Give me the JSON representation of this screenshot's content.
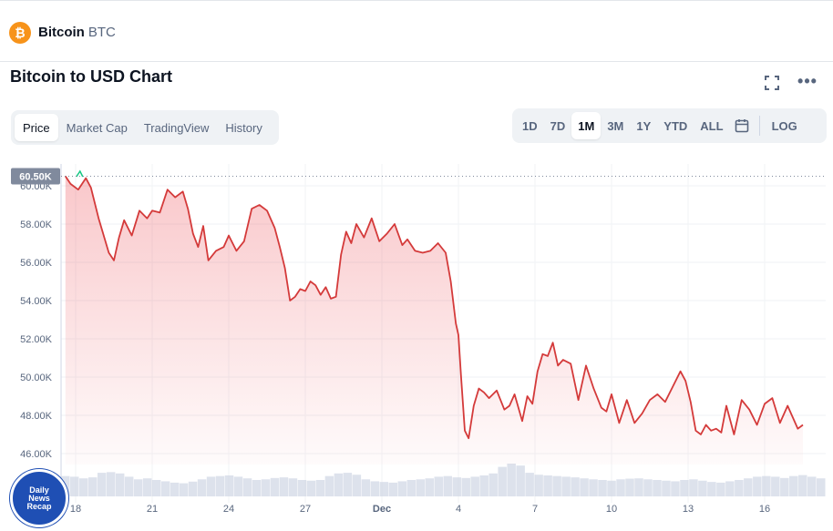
{
  "header": {
    "coin_logo": "₿",
    "coin_name": "Bitcoin",
    "coin_symbol": "BTC"
  },
  "chart_title": "Bitcoin to USD Chart",
  "icons": {
    "fullscreen": "fullscreen-icon",
    "more": "more-icon",
    "calendar": "calendar-icon"
  },
  "more_glyph": "•••",
  "view_tabs": [
    {
      "label": "Price",
      "active": true
    },
    {
      "label": "Market Cap",
      "active": false
    },
    {
      "label": "TradingView",
      "active": false
    },
    {
      "label": "History",
      "active": false
    }
  ],
  "range_tabs": [
    {
      "label": "1D",
      "active": false
    },
    {
      "label": "7D",
      "active": false
    },
    {
      "label": "1M",
      "active": true
    },
    {
      "label": "3M",
      "active": false
    },
    {
      "label": "1Y",
      "active": false
    },
    {
      "label": "YTD",
      "active": false
    },
    {
      "label": "ALL",
      "active": false
    }
  ],
  "log_label": "LOG",
  "news_badge": [
    "Daily",
    "News",
    "Recap"
  ],
  "colors": {
    "line": "#d43a3a",
    "fill": "#ea3943",
    "badge": "#808a9d",
    "volume": "#cfd6e4",
    "up_tick": "#16c784"
  },
  "chart_data": {
    "type": "line",
    "title": "Bitcoin to USD Chart",
    "current_price_label": "60.50K",
    "y_ticks": [
      "60.00K",
      "58.00K",
      "56.00K",
      "54.00K",
      "52.00K",
      "50.00K",
      "48.00K",
      "46.00K"
    ],
    "ylim": [
      46000,
      61000
    ],
    "x_ticks": [
      {
        "label": "18",
        "day": 0
      },
      {
        "label": "21",
        "day": 3
      },
      {
        "label": "24",
        "day": 6
      },
      {
        "label": "27",
        "day": 9
      },
      {
        "label": "Dec",
        "day": 12
      },
      {
        "label": "4",
        "day": 15
      },
      {
        "label": "7",
        "day": 18
      },
      {
        "label": "10",
        "day": 21
      },
      {
        "label": "13",
        "day": 24
      },
      {
        "label": "16",
        "day": 27
      }
    ],
    "xlim": [
      -0.4,
      28.5
    ],
    "grid": true,
    "series": [
      {
        "x": [
          -0.4,
          -0.2,
          0.1,
          0.4,
          0.6,
          0.9,
          1.1,
          1.3,
          1.5,
          1.7,
          1.9,
          2.2,
          2.5,
          2.8,
          3.0,
          3.3,
          3.6,
          3.9,
          4.2,
          4.4,
          4.6,
          4.8,
          5.0,
          5.2,
          5.5,
          5.8,
          6.0,
          6.3,
          6.6,
          6.9,
          7.2,
          7.5,
          7.8,
          8.0,
          8.2,
          8.4,
          8.6,
          8.8,
          9.0,
          9.2,
          9.4,
          9.6,
          9.8,
          10.0,
          10.2,
          10.4,
          10.6,
          10.8,
          11.0,
          11.3,
          11.6,
          11.9,
          12.2,
          12.5,
          12.8,
          13.0,
          13.3,
          13.6,
          13.9,
          14.2,
          14.5,
          14.7,
          14.9,
          15.0,
          15.1,
          15.25,
          15.4,
          15.6,
          15.8,
          16.0,
          16.2,
          16.5,
          16.8,
          17.0,
          17.2,
          17.5,
          17.7,
          17.9,
          18.1,
          18.3,
          18.5,
          18.7,
          18.9,
          19.1,
          19.4,
          19.7,
          20.0,
          20.3,
          20.6,
          20.8,
          21.0,
          21.3,
          21.6,
          21.9,
          22.2,
          22.5,
          22.8,
          23.1,
          23.4,
          23.7,
          23.9,
          24.1,
          24.3,
          24.5,
          24.7,
          24.9,
          25.1,
          25.3,
          25.5,
          25.8,
          26.1,
          26.4,
          26.7,
          27.0,
          27.3,
          27.6,
          27.9,
          28.1,
          28.3,
          28.5
        ],
        "y": [
          60500,
          60100,
          59800,
          60400,
          59900,
          58300,
          57400,
          56500,
          56100,
          57300,
          58200,
          57400,
          58700,
          58300,
          58700,
          58600,
          59800,
          59400,
          59700,
          58800,
          57500,
          56800,
          57900,
          56100,
          56600,
          56800,
          57400,
          56600,
          57100,
          58800,
          59000,
          58700,
          57800,
          56800,
          55700,
          54000,
          54200,
          54600,
          54500,
          55000,
          54800,
          54300,
          54700,
          54100,
          54200,
          56400,
          57600,
          57000,
          58000,
          57300,
          58300,
          57100,
          57500,
          58000,
          56900,
          57200,
          56600,
          56500,
          56600,
          57000,
          56500,
          55000,
          52800,
          52200,
          50100,
          47200,
          46800,
          48500,
          49400,
          49200,
          48900,
          49300,
          48300,
          48500,
          49100,
          47700,
          49000,
          48600,
          50300,
          51200,
          51100,
          51800,
          50600,
          50900,
          50700,
          48800,
          50600,
          49400,
          48400,
          48200,
          49100,
          47600,
          48800,
          47600,
          48100,
          48800,
          49100,
          48700,
          49500,
          50300,
          49800,
          48700,
          47200,
          47000,
          47500,
          47200,
          47300,
          47100,
          48500,
          47000,
          48800,
          48300,
          47500,
          48600,
          48900,
          47600,
          48500,
          47900,
          47300,
          47500
        ]
      }
    ],
    "volume": [
      0.62,
      0.6,
      0.55,
      0.58,
      0.72,
      0.74,
      0.7,
      0.6,
      0.52,
      0.55,
      0.5,
      0.46,
      0.42,
      0.4,
      0.45,
      0.52,
      0.6,
      0.62,
      0.64,
      0.6,
      0.55,
      0.5,
      0.52,
      0.56,
      0.58,
      0.55,
      0.5,
      0.48,
      0.5,
      0.62,
      0.7,
      0.72,
      0.66,
      0.52,
      0.46,
      0.44,
      0.42,
      0.46,
      0.5,
      0.52,
      0.55,
      0.6,
      0.62,
      0.58,
      0.56,
      0.6,
      0.64,
      0.7,
      0.9,
      1.0,
      0.94,
      0.72,
      0.66,
      0.64,
      0.62,
      0.6,
      0.58,
      0.55,
      0.52,
      0.5,
      0.48,
      0.52,
      0.54,
      0.55,
      0.52,
      0.5,
      0.48,
      0.46,
      0.5,
      0.52,
      0.48,
      0.44,
      0.42,
      0.46,
      0.5,
      0.55,
      0.6,
      0.62,
      0.6,
      0.56,
      0.62,
      0.65,
      0.6,
      0.55
    ]
  }
}
